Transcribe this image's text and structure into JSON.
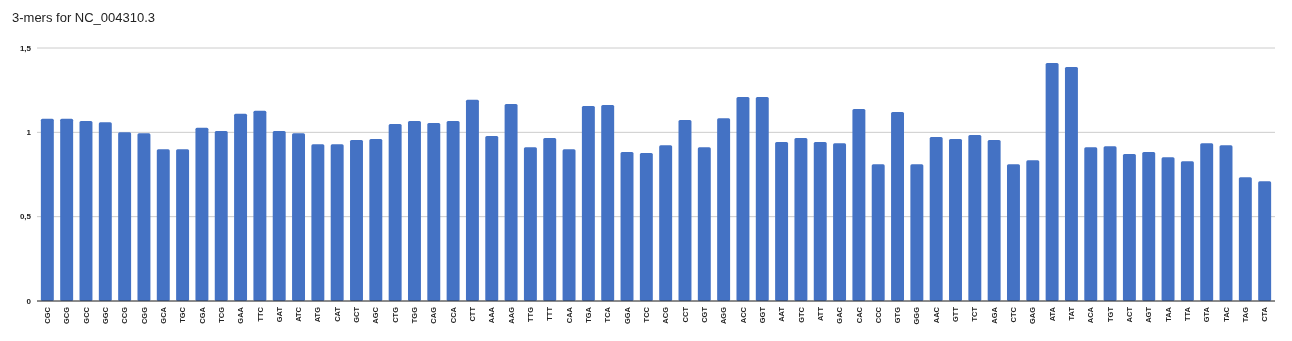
{
  "chart_data": {
    "type": "bar",
    "title": "3-mers for NC_004310.3",
    "categories": [
      "CGC",
      "GCG",
      "GCC",
      "GGC",
      "CCG",
      "CGG",
      "GCA",
      "TGC",
      "CGA",
      "TCG",
      "GAA",
      "TTC",
      "GAT",
      "ATC",
      "ATG",
      "CAT",
      "GCT",
      "AGC",
      "CTG",
      "TGG",
      "CAG",
      "CCA",
      "CTT",
      "AAA",
      "AAG",
      "TTG",
      "TTT",
      "CAA",
      "TGA",
      "TCA",
      "GGA",
      "TCC",
      "ACG",
      "CCT",
      "CGT",
      "AGG",
      "ACC",
      "GGT",
      "AAT",
      "GTC",
      "ATT",
      "GAC",
      "CAC",
      "CCC",
      "GTG",
      "GGG",
      "AAC",
      "GTT",
      "TCT",
      "AGA",
      "CTC",
      "GAG",
      "ATA",
      "TAT",
      "ACA",
      "TGT",
      "ACT",
      "AGT",
      "TAA",
      "TTA",
      "GTA",
      "TAC",
      "TAG",
      "CTA"
    ],
    "values": [
      1.08,
      1.08,
      1.067,
      1.06,
      1.0,
      0.995,
      0.9,
      0.9,
      1.027,
      1.008,
      1.11,
      1.128,
      1.008,
      0.995,
      0.93,
      0.93,
      0.954,
      0.96,
      1.049,
      1.067,
      1.055,
      1.067,
      1.193,
      0.978,
      1.168,
      0.912,
      0.966,
      0.9,
      1.156,
      1.162,
      0.883,
      0.877,
      0.924,
      1.073,
      0.912,
      1.084,
      1.209,
      1.209,
      0.942,
      0.966,
      0.942,
      0.936,
      1.138,
      0.811,
      1.12,
      0.811,
      0.972,
      0.96,
      0.984,
      0.954,
      0.811,
      0.835,
      1.411,
      1.387,
      0.912,
      0.918,
      0.871,
      0.883,
      0.853,
      0.829,
      0.936,
      0.924,
      0.734,
      0.71
    ],
    "color": "#4472c4",
    "ylim": [
      0,
      1.5
    ],
    "yticks": [
      0,
      {
        "value": 0.5,
        "label": "0,5"
      },
      1,
      {
        "value": 1.5,
        "label": "1,5"
      }
    ],
    "grid": "y"
  }
}
